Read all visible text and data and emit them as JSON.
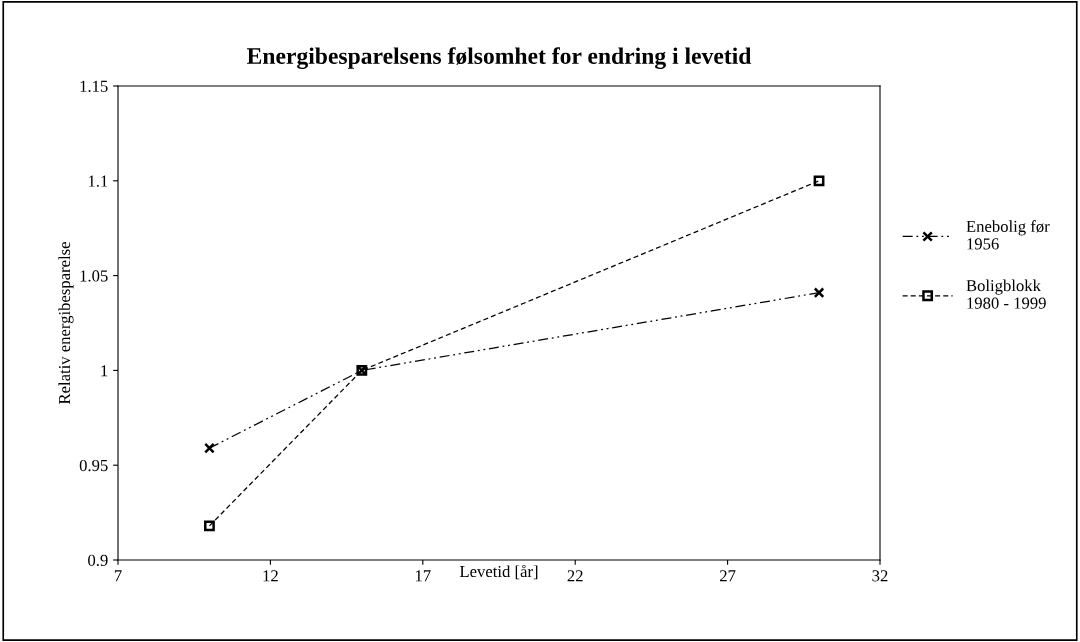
{
  "chart_data": {
    "type": "line",
    "title": "Energibesparelsens følsomhet for endring i levetid",
    "xlabel": "Levetid [år]",
    "ylabel": "Relativ energibesparelse",
    "x": [
      10,
      15,
      30
    ],
    "series": [
      {
        "name": "Enebolig før 1956",
        "color": "#000000",
        "marker": "cross",
        "line_style": "dashdot",
        "values": [
          0.959,
          1.0,
          1.041
        ]
      },
      {
        "name": "Boligblokk 1980 - 1999",
        "color": "#000000",
        "marker": "square",
        "line_style": "dashed",
        "values": [
          0.918,
          1.0,
          1.1
        ]
      }
    ],
    "xlim": [
      7,
      32
    ],
    "xticks": [
      7,
      12,
      17,
      22,
      27,
      32
    ],
    "ylim": [
      0.9,
      1.15
    ],
    "yticks": [
      0.9,
      0.95,
      1,
      1.05,
      1.1,
      1.15
    ],
    "grid": false,
    "legend": "right"
  }
}
